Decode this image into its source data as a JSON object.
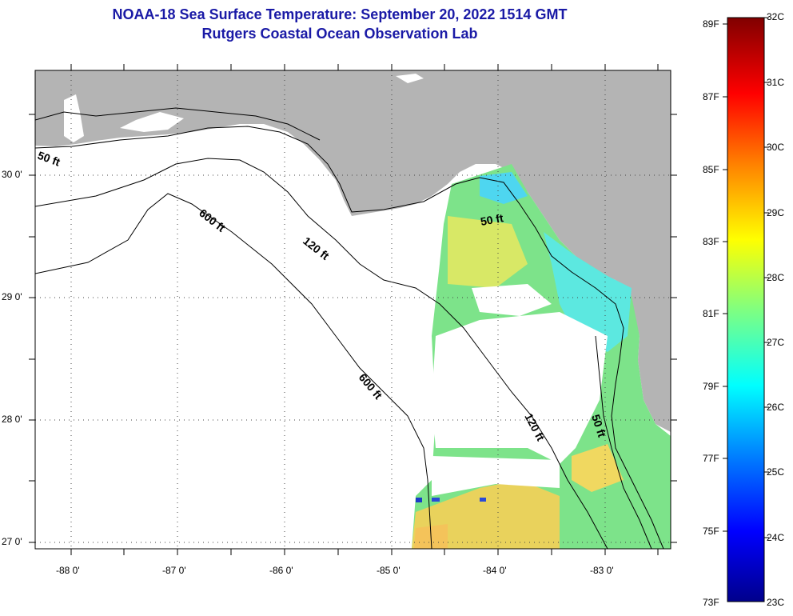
{
  "title_line1": "NOAA-18 Sea Surface Temperature:  September 20, 2022 1514 GMT",
  "title_line2": "Rutgers Coastal Ocean Observation Lab",
  "lat_ticks": [
    "30 0'",
    "29 0'",
    "28 0'",
    "27 0'"
  ],
  "lon_ticks": [
    "-88 0'",
    "-87 0'",
    "-86 0'",
    "-85 0'",
    "-84 0'",
    "-83 0'"
  ],
  "contour_labels": [
    "50 ft",
    "600 ft",
    "120 ft",
    "50 ft",
    "600 ft",
    "120 ft",
    "50 ft"
  ],
  "colorbar": {
    "fahrenheit": [
      "89F",
      "87F",
      "85F",
      "83F",
      "81F",
      "79F",
      "77F",
      "75F",
      "73F"
    ],
    "celsius": [
      "32C",
      "31C",
      "30C",
      "29C",
      "28C",
      "27C",
      "26C",
      "25C",
      "24C",
      "23C"
    ]
  },
  "colors": {
    "land": "#b4b4b4",
    "no_data": "#ffffff",
    "title": "#1a1aa6"
  }
}
